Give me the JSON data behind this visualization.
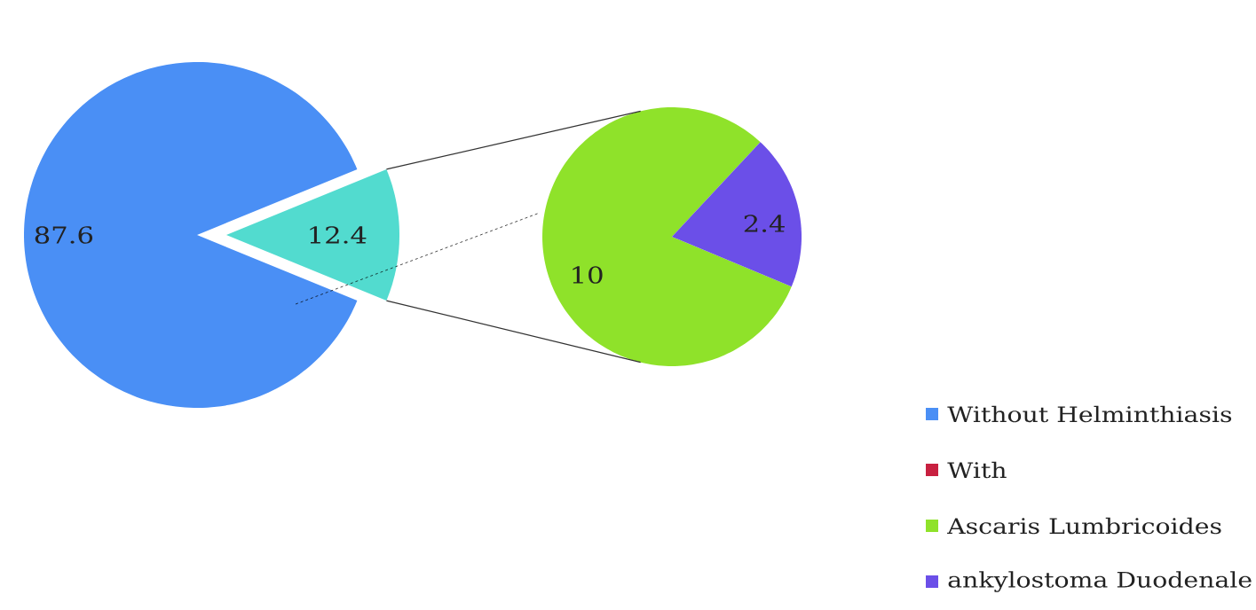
{
  "chart_data": [
    {
      "type": "pie",
      "categories": [
        "Without Helminthiasis",
        "With",
        null
      ],
      "values": [
        87.6,
        null,
        12.4
      ],
      "colors": [
        "#4a8ff5",
        "#c82040",
        "#52dbcf"
      ],
      "data_labels": true,
      "legend": "bottom right"
    },
    {
      "type": "pie",
      "categories": [
        "Ascaris Lumbricoides",
        "ankylostoma Duodenale"
      ],
      "values": [
        10,
        2.4
      ],
      "colors": [
        "#8fe22a",
        "#6b4fe8"
      ],
      "data_labels": true,
      "legend": "bottom right"
    }
  ]
}
